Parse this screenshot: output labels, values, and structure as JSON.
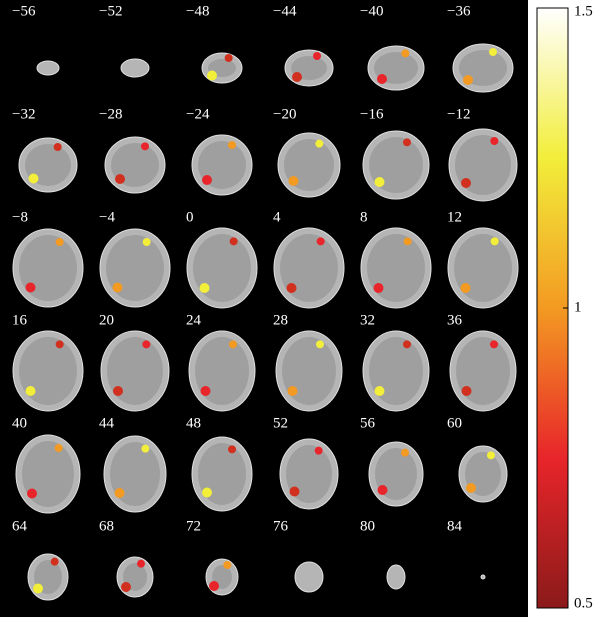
{
  "slices": [
    "−56",
    "−52",
    "−48",
    "−44",
    "−40",
    "−36",
    "−32",
    "−28",
    "−24",
    "−20",
    "−16",
    "−12",
    "−8",
    "−4",
    "0",
    "4",
    "8",
    "12",
    "16",
    "20",
    "24",
    "28",
    "32",
    "36",
    "40",
    "44",
    "48",
    "52",
    "56",
    "60",
    "64",
    "68",
    "72",
    "76",
    "80",
    "84"
  ],
  "colorbar": {
    "lim": [
      0.5,
      1.5
    ],
    "ticks": [
      0.5,
      1,
      1.5
    ]
  }
}
